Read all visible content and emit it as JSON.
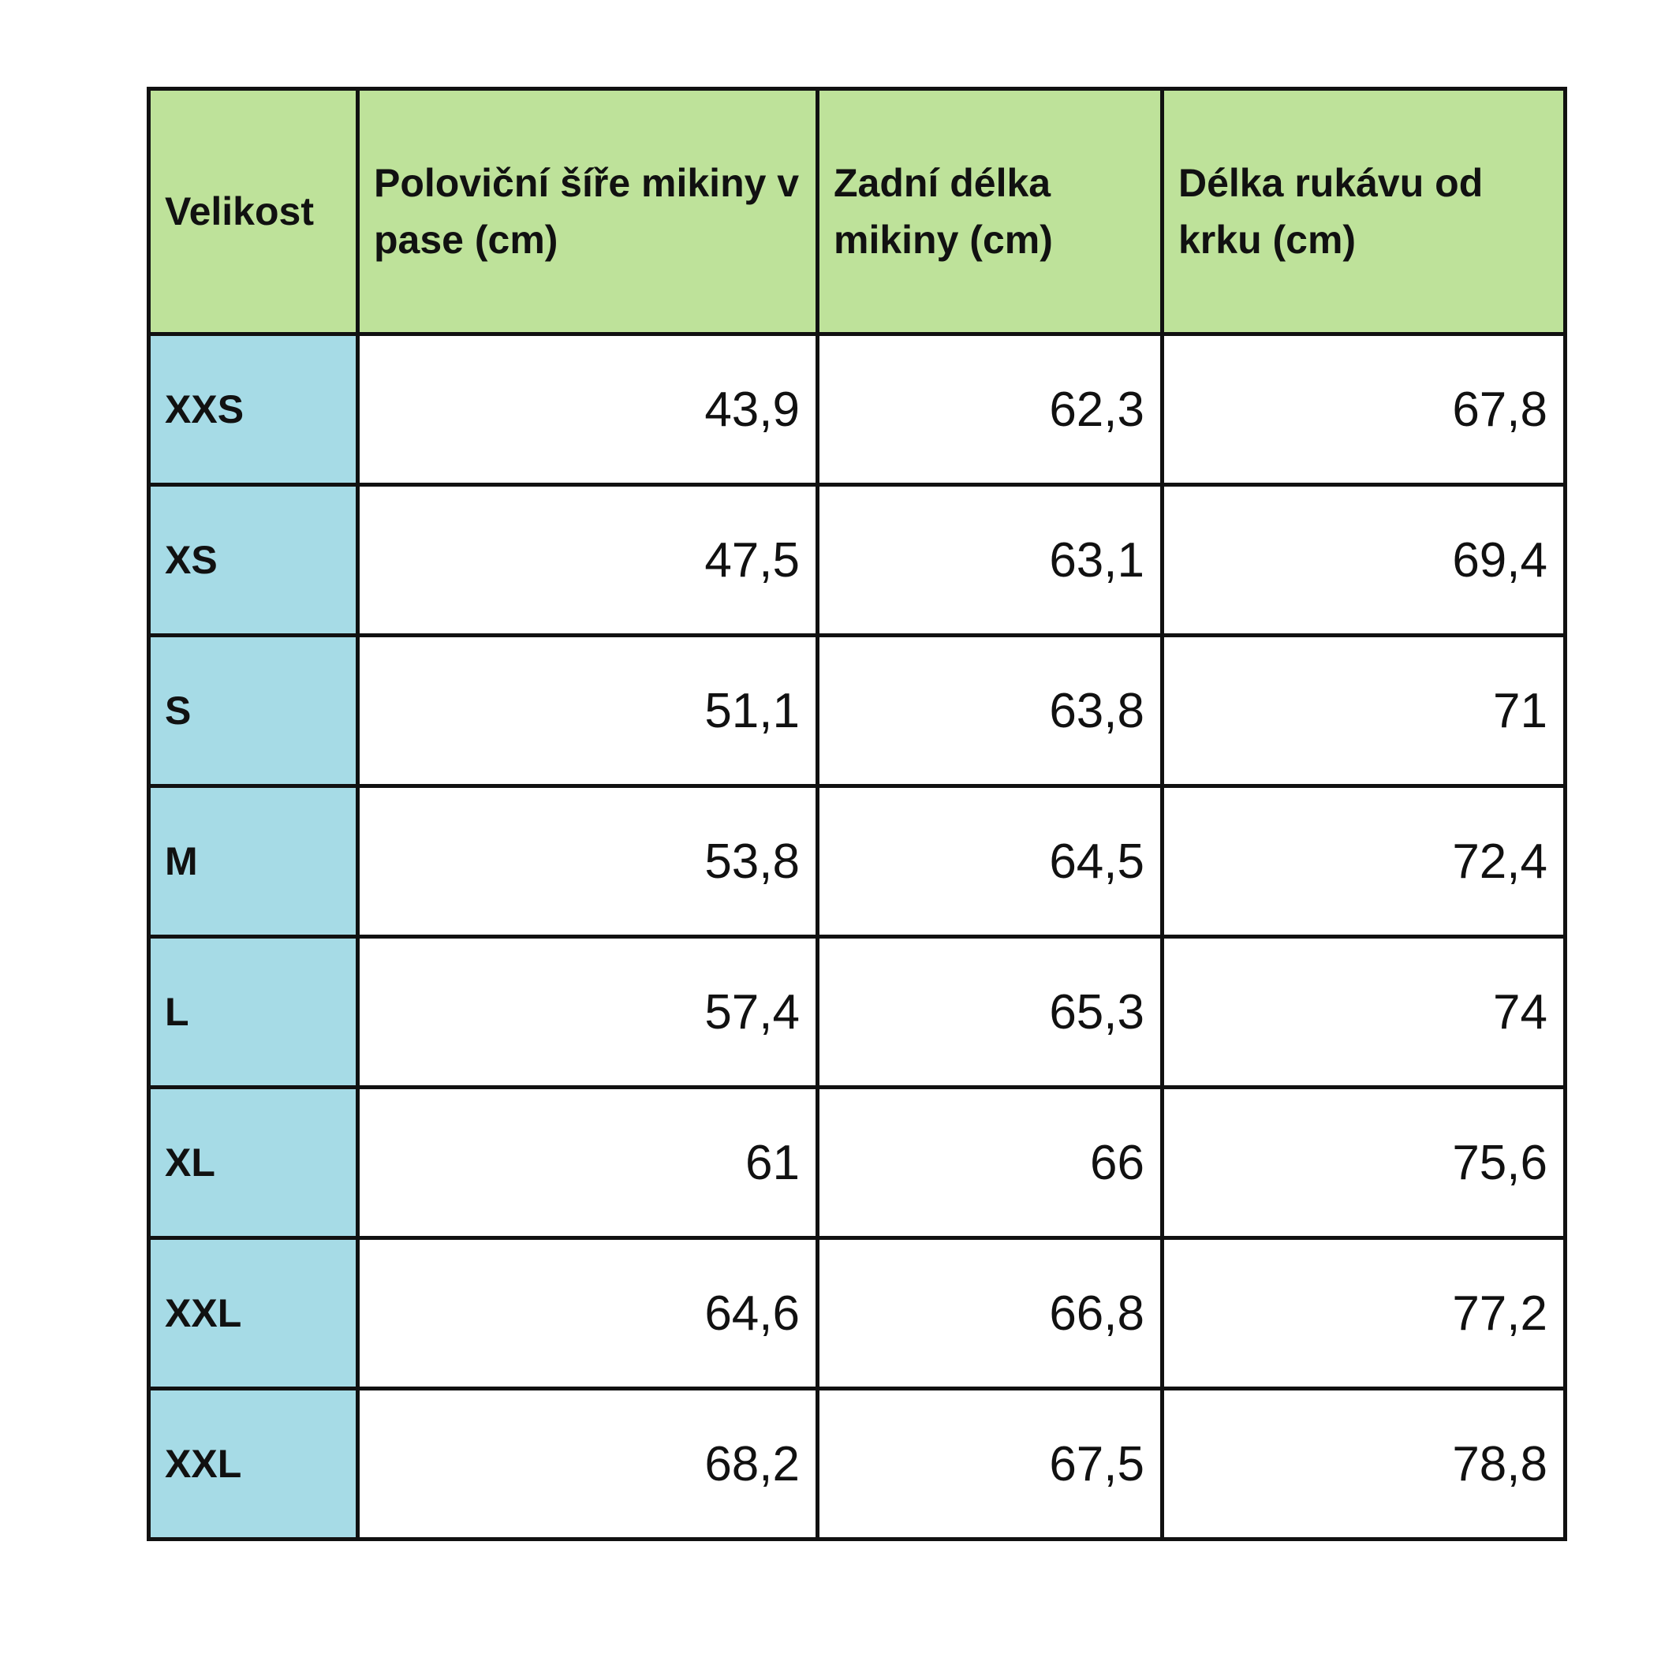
{
  "table": {
    "header": [
      "Velikost",
      "Poloviční šíře mikiny v pase (cm)",
      "Zadní délka mikiny (cm)",
      "Délka rukávu od krku (cm)"
    ],
    "rows": [
      [
        "XXS",
        "43,9",
        "62,3",
        "67,8"
      ],
      [
        "XS",
        "47,5",
        "63,1",
        "69,4"
      ],
      [
        "S",
        "51,1",
        "63,8",
        "71"
      ],
      [
        "M",
        "53,8",
        "64,5",
        "72,4"
      ],
      [
        "L",
        "57,4",
        "65,3",
        "74"
      ],
      [
        "XL",
        "61",
        "66",
        "75,6"
      ],
      [
        "XXL",
        "64,6",
        "66,8",
        "77,2"
      ],
      [
        "XXL",
        "68,2",
        "67,5",
        "78,8"
      ]
    ]
  }
}
